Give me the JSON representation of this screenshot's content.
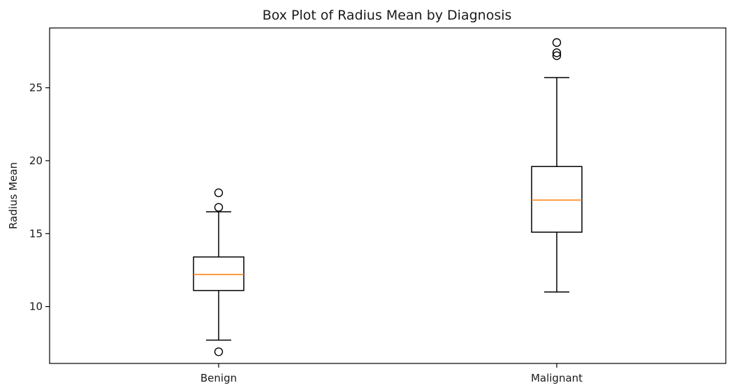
{
  "chart_data": {
    "type": "box",
    "title": "Box Plot of Radius Mean by Diagnosis",
    "xlabel": "",
    "ylabel": "Radius Mean",
    "ylim": [
      6.1,
      29.1
    ],
    "yticks": [
      10,
      15,
      20,
      25
    ],
    "grid": false,
    "categories": [
      "Benign",
      "Malignant"
    ],
    "boxes": [
      {
        "category": "Benign",
        "whisker_low": 7.7,
        "q1": 11.1,
        "median": 12.2,
        "q3": 13.4,
        "whisker_high": 16.5,
        "outliers": [
          6.9,
          16.8,
          17.8
        ]
      },
      {
        "category": "Malignant",
        "whisker_low": 11.0,
        "q1": 15.1,
        "median": 17.3,
        "q3": 19.6,
        "whisker_high": 25.7,
        "outliers": [
          27.2,
          27.4,
          28.1
        ]
      }
    ],
    "colors": {
      "box": "#000000",
      "median": "#ff7f0e"
    }
  }
}
